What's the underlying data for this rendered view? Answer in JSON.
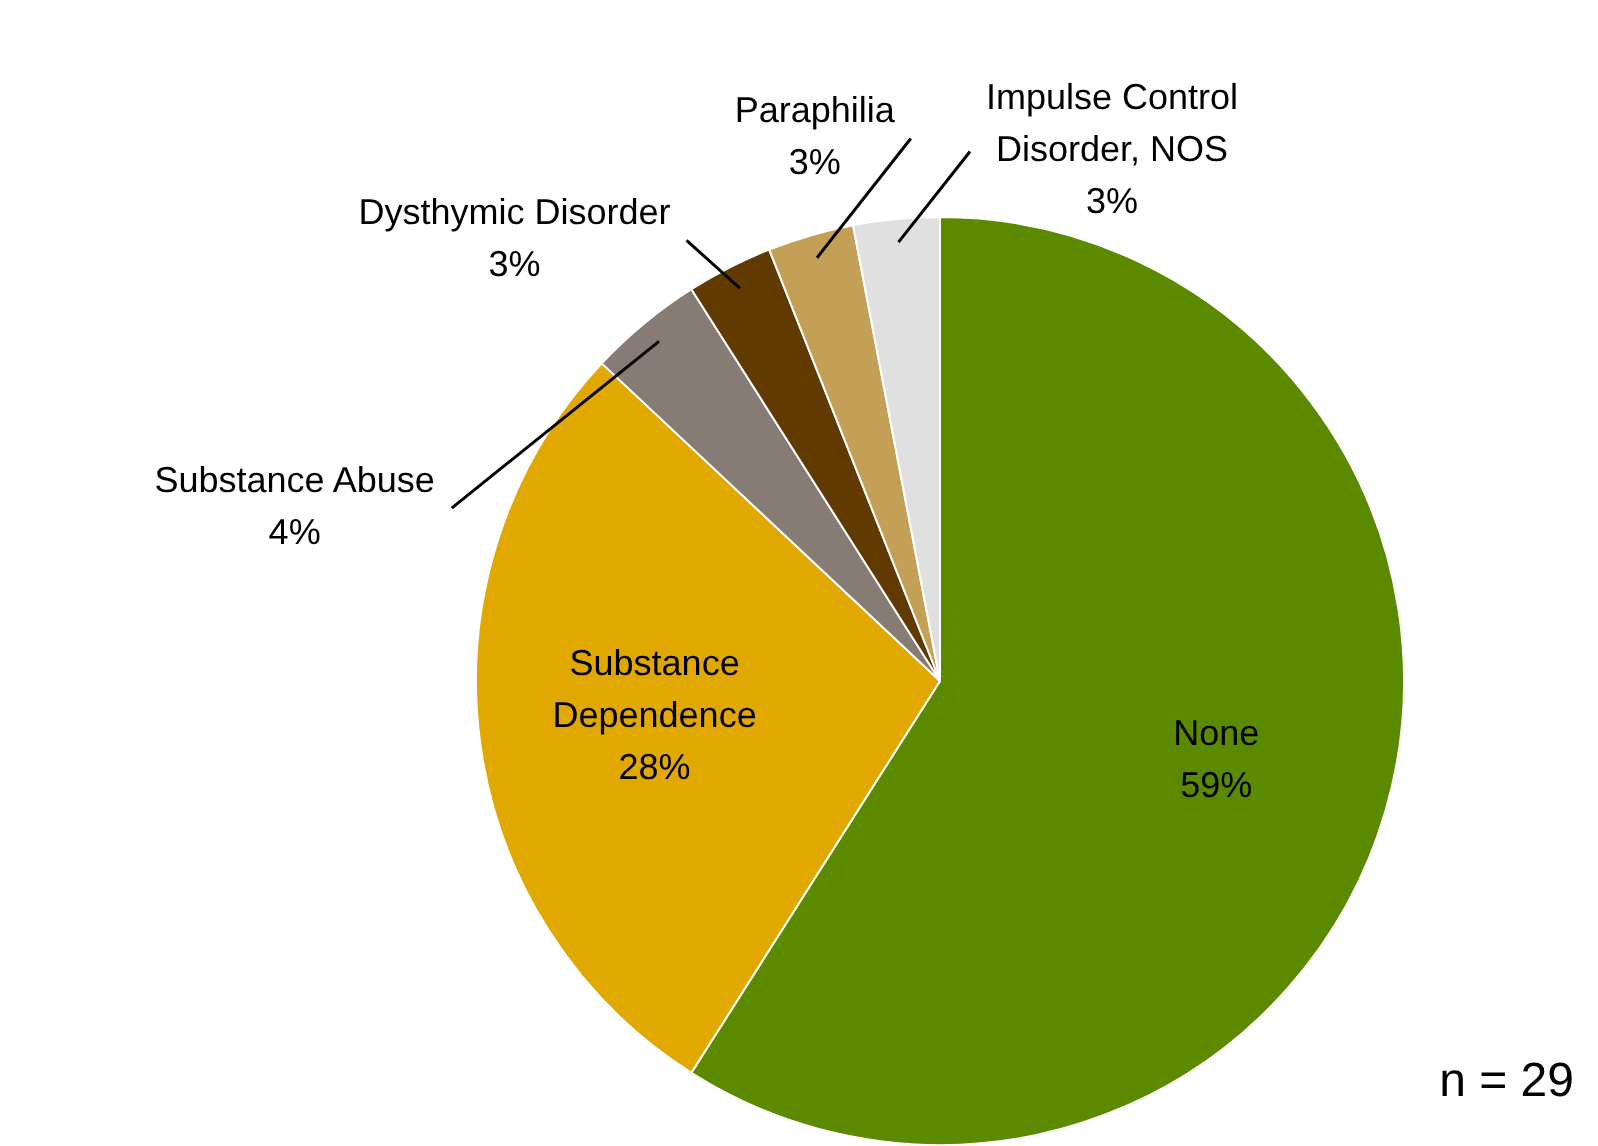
{
  "chart_data": {
    "type": "pie",
    "categories": [
      "None",
      "Substance Dependence",
      "Substance Abuse",
      "Dysthymic Disorder",
      "Paraphilia",
      "Impulse Control Disorder, NOS"
    ],
    "values": [
      59,
      28,
      4,
      3,
      3,
      3
    ],
    "colors": [
      "#5b8a00",
      "#e0a800",
      "#877b76",
      "#603a00",
      "#c4a057",
      "#e0e0e0"
    ],
    "value_labels": [
      "59%",
      "28%",
      "4%",
      "3%",
      "3%",
      "3%"
    ],
    "legend": false,
    "annotations": [
      "n = 29"
    ]
  }
}
